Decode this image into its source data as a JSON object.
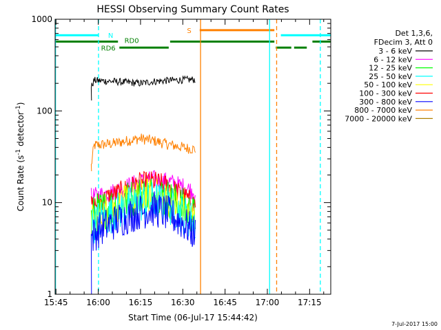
{
  "chart_data": {
    "type": "line",
    "title": "HESSI Observing Summary Count Rates",
    "xlabel": "Start Time (06-Jul-17 15:44:42)",
    "ylabel_main": "Count Rate (s",
    "ylabel_sup1": "-1",
    "ylabel_mid": " detector",
    "ylabel_sup2": "-1",
    "ylabel_end": ")",
    "yscale": "log",
    "ylim": [
      1,
      1000
    ],
    "xlim_minutes": [
      -0.3,
      97.5
    ],
    "x_ticks": [
      {
        "minutes": 0,
        "label": "15:45"
      },
      {
        "minutes": 15,
        "label": "16:00"
      },
      {
        "minutes": 30,
        "label": "16:15"
      },
      {
        "minutes": 45,
        "label": "16:30"
      },
      {
        "minutes": 60,
        "label": "16:45"
      },
      {
        "minutes": 75,
        "label": "17:00"
      },
      {
        "minutes": 90,
        "label": "17:15"
      }
    ],
    "y_ticks": [
      {
        "value": 1,
        "label": "1"
      },
      {
        "value": 10,
        "label": "10"
      },
      {
        "value": 100,
        "label": "100"
      },
      {
        "value": 1000,
        "label": "1000"
      }
    ],
    "legend_header": [
      "Det 1,3,6,",
      "FDecim 3, Att 0"
    ],
    "legend_placement": "right",
    "series": [
      {
        "name": "3 - 6 keV",
        "color": "#000000",
        "x": [
          12.5,
          13.5,
          20,
          25,
          30,
          35,
          40,
          45,
          49.5
        ],
        "y": [
          180,
          215,
          210,
          205,
          200,
          210,
          215,
          218,
          220
        ],
        "noise": 0.04
      },
      {
        "name": "6 - 12 keV",
        "color": "#ff00ff",
        "x": [
          12.5,
          15,
          20,
          25,
          30,
          35,
          40,
          45,
          49.5
        ],
        "y": [
          11.5,
          12,
          13,
          15,
          17,
          18,
          17,
          15,
          13
        ],
        "noise": 0.1
      },
      {
        "name": "12 - 25 keV",
        "color": "#00ff00",
        "x": [
          12.5,
          15,
          20,
          25,
          30,
          35,
          40,
          45,
          49.5
        ],
        "y": [
          7,
          8,
          9,
          10.5,
          12,
          12.5,
          11,
          9,
          7
        ],
        "noise": 0.22
      },
      {
        "name": "25 - 50 keV",
        "color": "#00ffff",
        "x": [
          12.5,
          15,
          20,
          25,
          30,
          35,
          40,
          45,
          49.5
        ],
        "y": [
          5.5,
          6.5,
          7.5,
          9,
          10,
          10.5,
          9.5,
          7.5,
          6
        ],
        "noise": 0.22
      },
      {
        "name": "50 - 100 keV",
        "color": "#ffff00",
        "x": [
          12.5,
          15,
          20,
          25,
          30,
          35,
          40,
          45,
          49.5
        ],
        "y": [
          6,
          7,
          8.5,
          10,
          11.5,
          12,
          10.5,
          8.5,
          6.5
        ],
        "noise": 0.2
      },
      {
        "name": "100 - 300 keV",
        "color": "#ff0000",
        "x": [
          12.5,
          15,
          20,
          25,
          30,
          35,
          40,
          45,
          49.5
        ],
        "y": [
          9,
          10,
          12,
          14,
          16.5,
          17,
          15,
          12,
          9.5
        ],
        "noise": 0.12
      },
      {
        "name": "300 - 800 keV",
        "color": "#0000ff",
        "x": [
          12.5,
          15,
          20,
          25,
          30,
          35,
          40,
          45,
          49.5
        ],
        "y": [
          4.2,
          5,
          6,
          7,
          8,
          8.5,
          7.5,
          6,
          4.5
        ],
        "noise": 0.2
      },
      {
        "name": "800 - 7000 keV",
        "color": "#ff8000",
        "x": [
          12.5,
          13.5,
          20,
          25,
          30,
          35,
          40,
          45,
          49.5
        ],
        "y": [
          25,
          42,
          44,
          47,
          50,
          47,
          43,
          40,
          38
        ],
        "noise": 0.06
      },
      {
        "name": "7000 - 20000 keV",
        "color": "#b08000",
        "x": [],
        "y": []
      }
    ],
    "state_labels": {
      "N": "N",
      "S": "S",
      "RD0": "RD0",
      "RD6": "RD6"
    },
    "state_bars": [
      {
        "color": "#00ffff",
        "level": 670,
        "start": -0.3,
        "end": 15
      },
      {
        "color": "#00ffff",
        "level": 670,
        "start": 79.8,
        "end": 97.5
      },
      {
        "color": "#ff8000",
        "level": 760,
        "start": 51,
        "end": 77.5
      },
      {
        "color": "#008000",
        "level": 570,
        "start": -0.3,
        "end": 22
      },
      {
        "color": "#008000",
        "level": 570,
        "start": 40.5,
        "end": 77.5
      },
      {
        "color": "#008000",
        "level": 570,
        "start": 91,
        "end": 97.5
      },
      {
        "color": "#008000",
        "level": 490,
        "start": 22.5,
        "end": 40
      },
      {
        "color": "#008000",
        "level": 490,
        "start": 78,
        "end": 83.5
      },
      {
        "color": "#008000",
        "level": 490,
        "start": 84.5,
        "end": 89
      }
    ],
    "vlines": [
      {
        "minutes": -0.15,
        "color": "#00ffff",
        "style": "solid"
      },
      {
        "minutes": 15.1,
        "color": "#00ffff",
        "style": "dashed"
      },
      {
        "minutes": 51.3,
        "color": "#ff8000",
        "style": "solid"
      },
      {
        "minutes": 75.8,
        "color": "#00ffff",
        "style": "solid"
      },
      {
        "minutes": 78.3,
        "color": "#ff8000",
        "style": "dashed"
      },
      {
        "minutes": 93.8,
        "color": "#00ffff",
        "style": "dashed"
      }
    ],
    "black_spike_drop": {
      "minutes": 12.6,
      "value": 130
    },
    "orange_spike_drop": {
      "minutes": 12.6,
      "value": 22
    },
    "blue_spike_drop": {
      "minutes": 12.6,
      "value": 1.0
    }
  },
  "timestamp": "7-Jul-2017 15:00"
}
